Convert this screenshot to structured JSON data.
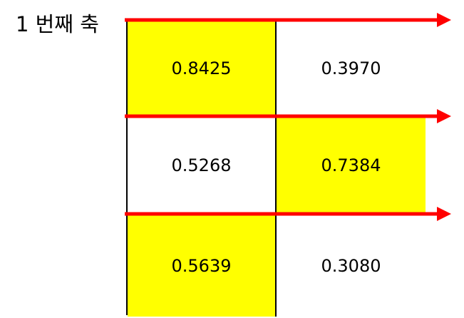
{
  "axis_label": "1 번째 축",
  "colors": {
    "highlight": "#ffff00",
    "normal": "#ffffff",
    "arrow": "#ff0000",
    "border": "#000000"
  },
  "table": {
    "rows": [
      [
        {
          "value": "0.8425",
          "highlighted": true
        },
        {
          "value": "0.3970",
          "highlighted": false
        }
      ],
      [
        {
          "value": "0.5268",
          "highlighted": false
        },
        {
          "value": "0.7384",
          "highlighted": true
        }
      ],
      [
        {
          "value": "0.5639",
          "highlighted": true
        },
        {
          "value": "0.3080",
          "highlighted": false
        }
      ]
    ]
  },
  "arrows": {
    "count": 3,
    "direction": "right"
  }
}
